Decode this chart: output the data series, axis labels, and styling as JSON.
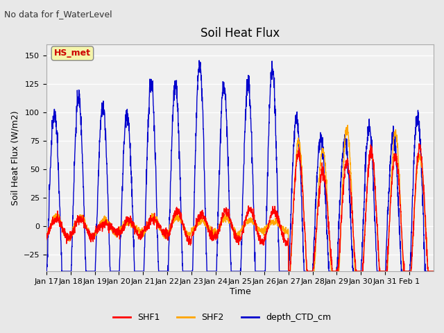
{
  "title": "Soil Heat Flux",
  "suptitle": "No data for f_WaterLevel",
  "ylabel": "Soil Heat Flux (W/m2)",
  "xlabel": "Time",
  "ylim": [
    -40,
    160
  ],
  "background_color": "#e8e8e8",
  "plot_bg_color": "#f0f0f0",
  "grid_color": "white",
  "hs_met_label": "HS_met",
  "hs_met_color": "#cc0000",
  "hs_met_bg": "#f5f5aa",
  "legend_entries": [
    "SHF1",
    "SHF2",
    "depth_CTD_cm"
  ],
  "legend_colors": [
    "red",
    "orange",
    "#0000cc"
  ],
  "tick_labels": [
    "Jan 17",
    "Jan 18",
    "Jan 19",
    "Jan 20",
    "Jan 21",
    "Jan 22",
    "Jan 23",
    "Jan 24",
    "Jan 25",
    "Jan 26",
    "Jan 27",
    "Jan 28",
    "Jan 29",
    "Jan 30",
    "Jan 31",
    "Feb 1"
  ],
  "n_days": 16,
  "seed": 42
}
